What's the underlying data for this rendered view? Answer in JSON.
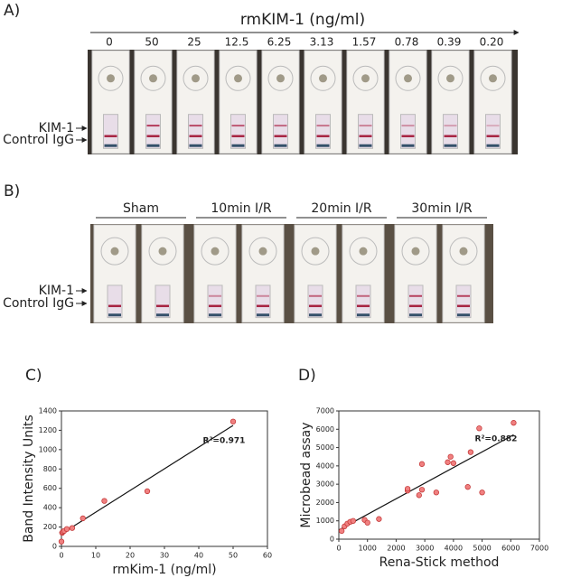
{
  "panel_a": {
    "label": "A)",
    "axis_title": "rmKIM-1 (ng/ml)",
    "concentrations": [
      "0",
      "50",
      "25",
      "12.5",
      "6.25",
      "3.13",
      "1.57",
      "0.78",
      "0.39",
      "0.20"
    ],
    "band_labels": [
      "KIM-1",
      "Control IgG"
    ]
  },
  "panel_b": {
    "label": "B)",
    "groups": [
      "Sham",
      "10min I/R",
      "20min I/R",
      "30min I/R"
    ],
    "band_labels": [
      "KIM-1",
      "Control IgG"
    ]
  },
  "chart_data": [
    {
      "type": "scatter",
      "panel_label": "C)",
      "x_label": "rmKim-1 (ng/ml)",
      "y_label": "Band Intensity Units",
      "annotation": "R²=0.971",
      "color": "#f08080",
      "x": [
        0,
        0.2,
        0.39,
        0.78,
        1.57,
        3.13,
        6.25,
        12.5,
        25,
        50
      ],
      "values": [
        50,
        140,
        150,
        160,
        180,
        190,
        290,
        470,
        570,
        1290
      ],
      "trend": {
        "x": [
          0,
          50
        ],
        "y": [
          130,
          1250
        ]
      },
      "xlim": [
        0,
        60
      ],
      "xticks": [
        0,
        10,
        20,
        30,
        40,
        50,
        60
      ],
      "ylim": [
        0,
        1400
      ],
      "yticks": [
        0,
        200,
        400,
        600,
        800,
        1000,
        1200,
        1400
      ]
    },
    {
      "type": "scatter",
      "panel_label": "D)",
      "x_label": "Rena-Stick method",
      "y_label": "Microbead assay",
      "annotation": "R²=0.882",
      "color": "#f08080",
      "x": [
        100,
        200,
        300,
        400,
        500,
        900,
        1000,
        1400,
        2400,
        2400,
        2800,
        2900,
        2900,
        3400,
        3800,
        3900,
        4000,
        4500,
        4600,
        4900,
        5000,
        6100
      ],
      "values": [
        450,
        700,
        850,
        950,
        1000,
        1050,
        900,
        1100,
        2650,
        2750,
        2400,
        2700,
        4100,
        2550,
        4200,
        4500,
        4150,
        2850,
        4750,
        6050,
        2550,
        6350
      ],
      "trend": {
        "x": [
          0,
          6100
        ],
        "y": [
          500,
          5700
        ]
      },
      "xlim": [
        0,
        7000
      ],
      "xticks": [
        0,
        1000,
        2000,
        3000,
        4000,
        5000,
        6000,
        7000
      ],
      "ylim": [
        0,
        7000
      ],
      "yticks": [
        0,
        1000,
        2000,
        3000,
        4000,
        5000,
        6000,
        7000
      ]
    }
  ]
}
